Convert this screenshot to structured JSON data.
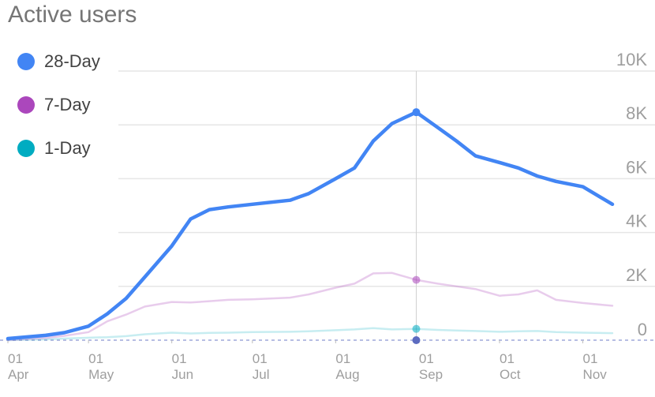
{
  "title": "Active users",
  "chart_data": {
    "type": "line",
    "title": "Active users",
    "x_label_lines": [
      [
        "01",
        "Apr"
      ],
      [
        "01",
        "May"
      ],
      [
        "01",
        "Jun"
      ],
      [
        "01",
        "Jul"
      ],
      [
        "01",
        "Aug"
      ],
      [
        "01",
        "Sep"
      ],
      [
        "01",
        "Oct"
      ],
      [
        "01",
        "Nov"
      ]
    ],
    "x": [
      "Apr 1",
      "Apr 15",
      "Apr 22",
      "May 1",
      "May 8",
      "May 15",
      "May 22",
      "Jun 1",
      "Jun 8",
      "Jun 15",
      "Jun 22",
      "Jul 1",
      "Jul 15",
      "Jul 22",
      "Aug 1",
      "Aug 8",
      "Aug 15",
      "Aug 22",
      "Aug 31",
      "Sep 8",
      "Sep 15",
      "Sep 22",
      "Oct 1",
      "Oct 8",
      "Oct 15",
      "Oct 22",
      "Nov 1",
      "Nov 12"
    ],
    "series": [
      {
        "name": "28-Day",
        "color": "#4285f4",
        "values": [
          60,
          180,
          280,
          520,
          980,
          1550,
          2350,
          3500,
          4500,
          4850,
          4950,
          5050,
          5200,
          5450,
          6000,
          6400,
          7400,
          8050,
          8470,
          7900,
          7400,
          6850,
          6600,
          6400,
          6100,
          5900,
          5700,
          5050
        ]
      },
      {
        "name": "7-Day",
        "color": "#ab47bc",
        "values": [
          0,
          80,
          160,
          300,
          700,
          950,
          1250,
          1420,
          1400,
          1450,
          1500,
          1520,
          1580,
          1700,
          1950,
          2100,
          2480,
          2500,
          2240,
          2100,
          2000,
          1900,
          1650,
          1700,
          1850,
          1500,
          1380,
          1280
        ]
      },
      {
        "name": "1-Day",
        "color": "#00acc1",
        "values": [
          0,
          30,
          60,
          90,
          110,
          150,
          220,
          280,
          250,
          270,
          280,
          300,
          310,
          330,
          370,
          400,
          450,
          400,
          420,
          380,
          360,
          340,
          310,
          330,
          340,
          300,
          280,
          260
        ]
      }
    ],
    "yticks": [
      "0",
      "2K",
      "4K",
      "6K",
      "8K",
      "10K"
    ],
    "ylim": [
      0,
      10000
    ],
    "tooltip_index": 18,
    "legend_position": "top-left",
    "grid": true
  }
}
